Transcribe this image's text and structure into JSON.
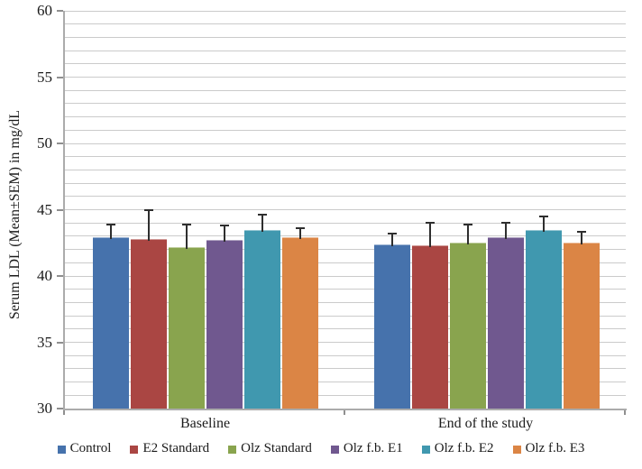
{
  "chart_data": {
    "type": "bar",
    "title": "",
    "ylabel": "Serum LDL (Mean±SEM) in mg/dL",
    "xlabel": "",
    "ylim": [
      30,
      60
    ],
    "yticks": [
      30,
      35,
      40,
      45,
      50,
      55,
      60
    ],
    "minor_gridline_step": 1,
    "grid": "horizontal gridlines every 1 unit",
    "legend_position": "bottom",
    "categories": [
      "Baseline",
      "End of the study"
    ],
    "series": [
      {
        "name": "Control",
        "color": "#4672AC",
        "values": [
          42.9,
          42.4
        ],
        "sem_upper": [
          1.0,
          0.8
        ]
      },
      {
        "name": "E2 Standard",
        "color": "#AA4643",
        "values": [
          42.8,
          42.3
        ],
        "sem_upper": [
          2.2,
          1.7
        ]
      },
      {
        "name": "Olz Standard",
        "color": "#89A44E",
        "values": [
          42.2,
          42.5
        ],
        "sem_upper": [
          1.7,
          1.4
        ]
      },
      {
        "name": "Olz f.b. E1",
        "color": "#70588F",
        "values": [
          42.7,
          42.9
        ],
        "sem_upper": [
          1.1,
          1.1
        ]
      },
      {
        "name": "Olz f.b. E2",
        "color": "#4098AF",
        "values": [
          43.5,
          43.5
        ],
        "sem_upper": [
          1.1,
          1.0
        ]
      },
      {
        "name": "Olz f.b. E3",
        "color": "#DB8545",
        "values": [
          42.9,
          42.5
        ],
        "sem_upper": [
          0.7,
          0.8
        ]
      }
    ],
    "style": {
      "error_bar_color": "#2e2e2e",
      "gridline_color": "#cbcbcb",
      "axis_color": "#ababab",
      "tick_color": "#8f8f8f",
      "background_color": "#ffffff"
    }
  }
}
